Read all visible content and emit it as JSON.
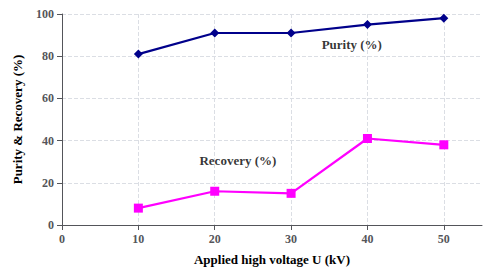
{
  "chart_data": {
    "type": "line",
    "xlabel": "Applied high voltage U (kV)",
    "ylabel": "Purity & Recovery (%)",
    "x": [
      10,
      20,
      30,
      40,
      50
    ],
    "series": [
      {
        "color": "#00008B",
        "marker": "diamond",
        "values": [
          81,
          91,
          91,
          95,
          98
        ]
      },
      {
        "color": "#FF00FF",
        "marker": "square",
        "values": [
          8,
          16,
          15,
          41,
          38
        ]
      }
    ],
    "annotations": [
      {
        "text": "Purity (%)",
        "x": 34,
        "y": 82
      },
      {
        "text": "Recovery (%)",
        "x": 18,
        "y": 27
      }
    ],
    "xlim": [
      0,
      55
    ],
    "ylim": [
      0,
      100
    ],
    "xticks": [
      0,
      10,
      20,
      30,
      40,
      50
    ],
    "yticks": [
      0,
      20,
      40,
      60,
      80,
      100
    ],
    "grid": true
  }
}
